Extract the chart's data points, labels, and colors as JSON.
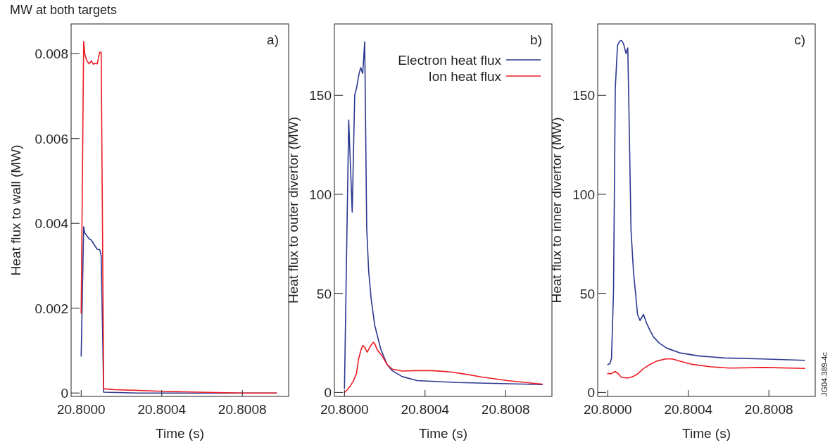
{
  "chart_data": [
    {
      "type": "line",
      "title": "MW at both targets",
      "xlabel": "Time (s)",
      "ylabel": "Heat flux to wall (MW)",
      "annotations": [
        "a)"
      ],
      "xlim": [
        20.79995,
        20.80103
      ],
      "ylim": [
        -8e-05,
        0.0087
      ],
      "xticks": [
        {
          "value": 20.8,
          "label": "20.8000"
        },
        {
          "value": 20.8004,
          "label": "20.8004"
        },
        {
          "value": 20.8008,
          "label": "20.8008"
        }
      ],
      "yticks": [
        0,
        0.002,
        0.004,
        0.006,
        0.008
      ],
      "series": [
        {
          "color": "#2b3990",
          "x": [
            20.8,
            20.8000123,
            20.8000184,
            20.8000405,
            20.8000503,
            20.8000601,
            20.8000798,
            20.800092,
            20.8000994,
            20.8001117,
            20.8002859,
            20.8004,
            20.8005926,
            20.8008,
            20.8009693
          ],
          "values": [
            0.00087,
            0.00392,
            0.00377,
            0.00363,
            0.00361,
            0.00353,
            0.00339,
            0.00338,
            0.00324,
            2e-05,
            0,
            0,
            0,
            0,
            0
          ]
        },
        {
          "color": "#ed1c24",
          "x": [
            20.8,
            20.8000123,
            20.8000184,
            20.8000282,
            20.8000405,
            20.8000503,
            20.8000601,
            20.8000675,
            20.8000798,
            20.800092,
            20.8000994,
            20.8001117,
            20.8001632,
            20.8002859,
            20.8004,
            20.8005926,
            20.8008,
            20.8009693
          ],
          "values": [
            0.00188,
            0.00829,
            0.00798,
            0.00783,
            0.00776,
            0.00783,
            0.00775,
            0.00777,
            0.00776,
            0.00803,
            0.00803,
            0.0001,
            8e-05,
            6e-05,
            4e-05,
            2e-05,
            0,
            0
          ]
        }
      ]
    },
    {
      "type": "line",
      "xlabel": "Time (s)",
      "ylabel": "Heat flux to outer divertor (MW)",
      "annotations": [
        "b)"
      ],
      "legend": "top right",
      "xlim": [
        20.79995,
        20.80103
      ],
      "ylim": [
        -2,
        186
      ],
      "xticks": [
        {
          "value": 20.8,
          "label": "20.8000"
        },
        {
          "value": 20.8004,
          "label": "20.8004"
        },
        {
          "value": 20.8008,
          "label": "20.8008"
        }
      ],
      "yticks": [
        0,
        50,
        100,
        150
      ],
      "series": [
        {
          "name": "Electron heat flux",
          "color": "#2b3990",
          "x": [
            20.8,
            20.8000211,
            20.8000385,
            20.8000509,
            20.8000608,
            20.8000707,
            20.8000806,
            20.8000906,
            20.8001005,
            20.8001104,
            20.8001203,
            20.8001328,
            20.8001501,
            20.8001799,
            20.8002122,
            20.800237,
            20.8002866,
            20.800361,
            20.8005596,
            20.8009814
          ],
          "values": [
            1.9,
            137.6,
            91,
            150,
            154,
            160,
            164,
            161,
            177,
            83,
            61,
            47,
            34,
            22,
            14,
            11,
            8,
            6,
            5,
            4
          ]
        },
        {
          "name": "Ion heat flux",
          "color": "#ed1c24",
          "x": [
            20.8,
            20.8000136,
            20.8000285,
            20.8000434,
            20.8000596,
            20.8000695,
            20.8000806,
            20.8000906,
            20.8001005,
            20.8001129,
            20.8001278,
            20.8001427,
            20.8001501,
            20.8001625,
            20.8001873,
            20.8002122,
            20.800237,
            20.8002866,
            20.8003486,
            20.8004355,
            20.8005099,
            20.8005844,
            20.8006836,
            20.8008077,
            20.8009814
          ],
          "values": [
            0,
            1.3,
            3.2,
            5.7,
            9.5,
            16.5,
            21,
            23.7,
            22.8,
            20.3,
            23.2,
            25.3,
            24.7,
            21.5,
            18.4,
            14,
            11.8,
            10.8,
            11,
            11,
            10.5,
            9.5,
            7.8,
            6,
            4.2
          ]
        }
      ]
    },
    {
      "type": "line",
      "xlabel": "Time (s)",
      "ylabel": "Heat flux to inner divertor (MW)",
      "annotations": [
        "c)",
        "JG04.389-4c"
      ],
      "xlim": [
        20.79995,
        20.80103
      ],
      "ylim": [
        -2,
        186
      ],
      "xticks": [
        {
          "value": 20.8,
          "label": "20.8000"
        },
        {
          "value": 20.8004,
          "label": "20.8004"
        },
        {
          "value": 20.8008,
          "label": "20.8008"
        }
      ],
      "yticks": [
        0,
        50,
        100,
        150
      ],
      "series": [
        {
          "color": "#2b3990",
          "x": [
            20.8,
            20.8000112,
            20.8000186,
            20.8000286,
            20.8000373,
            20.8000484,
            20.8000584,
            20.8000683,
            20.8000783,
            20.8000907,
            20.8000994,
            20.8001056,
            20.8001155,
            20.800128,
            20.8001379,
            20.8001478,
            20.8001602,
            20.8001776,
            20.8001925,
            20.8002075,
            20.8002273,
            20.8002571,
            20.8002944,
            20.8003565,
            20.8004559,
            20.8005801,
            20.8007665,
            20.8009776
          ],
          "values": [
            14,
            14.6,
            17.2,
            50.9,
            153.3,
            175.2,
            177.2,
            177.7,
            176,
            171.1,
            173.9,
            140.6,
            82,
            60.4,
            50.3,
            39.4,
            36.3,
            39.4,
            35,
            31.8,
            28,
            24.8,
            22.3,
            20,
            18.4,
            17.4,
            16.9,
            16.2
          ]
        },
        {
          "color": "#ed1c24",
          "x": [
            20.8,
            20.8000186,
            20.800036,
            20.8000484,
            20.8000683,
            20.8001006,
            20.8001205,
            20.8001429,
            20.8001776,
            20.8002075,
            20.8002447,
            20.8002882,
            20.8003193,
            20.8003689,
            20.8004186,
            20.8005056,
            20.800605,
            20.800779,
            20.8009776
          ],
          "values": [
            9.5,
            9.5,
            10.6,
            9.8,
            7.6,
            7.3,
            7.9,
            8.9,
            12.1,
            14,
            15.9,
            16.9,
            16.9,
            15.5,
            14.2,
            13,
            12.3,
            12.6,
            12.1
          ]
        }
      ]
    }
  ]
}
